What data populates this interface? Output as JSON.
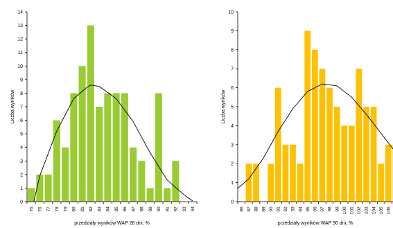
{
  "chart_data": [
    {
      "type": "bar",
      "xlabel": "przedziały wyników WAP 28 dni, %",
      "ylabel": "Liczba wyników",
      "ylim": [
        0,
        14
      ],
      "yticks": [
        0,
        1,
        2,
        3,
        4,
        5,
        6,
        7,
        8,
        9,
        10,
        11,
        12,
        13,
        14
      ],
      "categories": [
        "75",
        "76",
        "77",
        "78",
        "79",
        "80",
        "81",
        "82",
        "83",
        "84",
        "85",
        "86",
        "87",
        "88",
        "89",
        "90",
        "91",
        "92",
        "93",
        "94"
      ],
      "values": [
        1,
        2,
        2,
        6,
        4,
        8,
        10,
        13,
        7,
        8,
        8,
        8,
        4,
        3,
        1,
        8,
        1,
        3,
        0,
        0
      ],
      "bar_color": "#99cc33",
      "grid": false,
      "fit_curve": {
        "type": "normal",
        "points": [
          [
            75.3,
            0
          ],
          [
            76,
            1.9
          ],
          [
            78,
            5.2
          ],
          [
            80,
            7.6
          ],
          [
            81.5,
            8.4
          ],
          [
            82,
            8.6
          ],
          [
            83,
            8.5
          ],
          [
            85,
            7.6
          ],
          [
            87,
            5.9
          ],
          [
            89,
            3.6
          ],
          [
            91,
            1.6
          ],
          [
            93,
            0.5
          ],
          [
            94,
            0.05
          ]
        ]
      }
    },
    {
      "type": "bar",
      "xlabel": "przedziały wyników WAP 90 dni, %",
      "ylabel": "Liczba wyników",
      "ylim": [
        0,
        10
      ],
      "yticks": [
        0,
        1,
        2,
        3,
        4,
        5,
        6,
        7,
        8,
        9,
        10
      ],
      "categories": [
        "86",
        "87",
        "88",
        "89",
        "90",
        "91",
        "92",
        "93",
        "94",
        "95",
        "96",
        "97",
        "98",
        "99",
        "100",
        "101",
        "102",
        "103",
        "104",
        "105",
        "106",
        "107",
        "108",
        "109",
        "110"
      ],
      "values": [
        0,
        2,
        2,
        0,
        2,
        6,
        3,
        3,
        2,
        9,
        8,
        7,
        6,
        5,
        4,
        4,
        7,
        5,
        5,
        2,
        3,
        3,
        0,
        0,
        3
      ],
      "bar_color": "#ffc000",
      "grid": false,
      "fit_curve": {
        "type": "normal",
        "points": [
          [
            85.5,
            0.7
          ],
          [
            87,
            1.2
          ],
          [
            89,
            2.3
          ],
          [
            91,
            3.7
          ],
          [
            93,
            4.9
          ],
          [
            95,
            5.8
          ],
          [
            97,
            6.2
          ],
          [
            99,
            6.1
          ],
          [
            101,
            5.5
          ],
          [
            103,
            4.6
          ],
          [
            105,
            3.6
          ],
          [
            107,
            2.6
          ],
          [
            109,
            1.5
          ],
          [
            110.5,
            1.0
          ]
        ]
      }
    }
  ]
}
